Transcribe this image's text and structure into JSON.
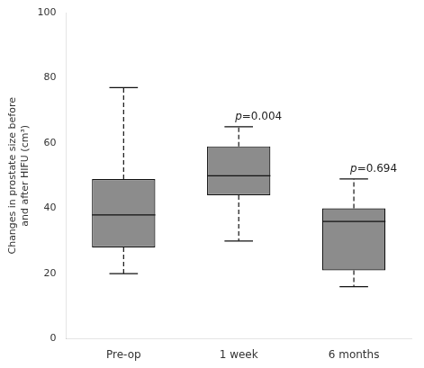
{
  "chart_data": {
    "type": "box",
    "categories": [
      "Pre-op",
      "1 week",
      "6 months"
    ],
    "whisker_low": [
      20,
      30,
      16
    ],
    "q1": [
      28,
      44,
      21
    ],
    "median": [
      38,
      50,
      36
    ],
    "q3": [
      49,
      59,
      40
    ],
    "whisker_high": [
      77,
      65,
      49
    ],
    "annotations": [
      {
        "x": "1 week",
        "text": "p=0.004"
      },
      {
        "x": "6 months",
        "text": "p=0.694"
      }
    ],
    "ylabel": "Changes in prostate size before\nand after HIFU (cm³)",
    "color": "#8c8c8c",
    "line_style": "dashed",
    "ylim": [
      0,
      100
    ],
    "yticks": [
      0,
      20,
      40,
      60,
      80,
      100
    ],
    "grid": false
  }
}
